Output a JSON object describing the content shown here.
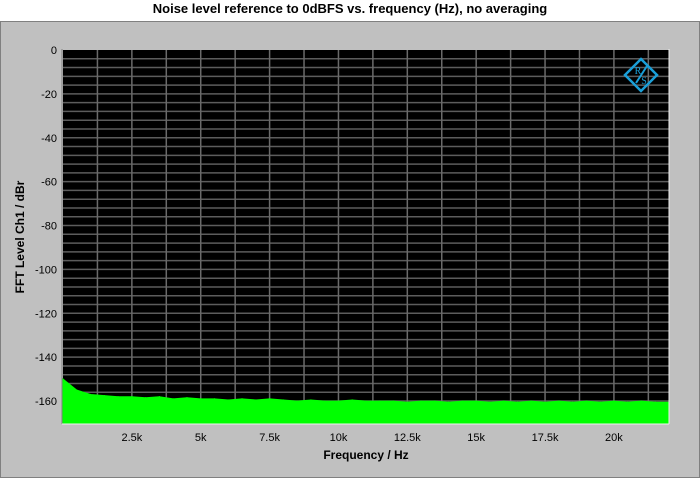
{
  "chart_data": {
    "type": "area",
    "title": "Noise level reference to 0dBFS vs. frequency (Hz), no averaging",
    "xlabel": "Frequency / Hz",
    "ylabel": "FFT Level Ch1 / dBr",
    "xlim": [
      0,
      22000
    ],
    "ylim": [
      -170,
      0
    ],
    "grid": true,
    "x_ticks": [
      2500,
      5000,
      7500,
      10000,
      12500,
      15000,
      17500,
      20000
    ],
    "x_tick_labels": [
      "2.5k",
      "5k",
      "7.5k",
      "10k",
      "12.5k",
      "15k",
      "17.5k",
      "20k"
    ],
    "y_ticks": [
      0,
      -20,
      -40,
      -60,
      -80,
      -100,
      -120,
      -140,
      -160
    ],
    "y_tick_labels": [
      "0",
      "-20",
      "-40",
      "-60",
      "-80",
      "-100",
      "-120",
      "-140",
      "-160"
    ],
    "series": [
      {
        "color": "#00ff00",
        "x": [
          0,
          500,
          1000,
          1500,
          2000,
          2500,
          3000,
          3500,
          4000,
          4500,
          5000,
          5500,
          6000,
          6500,
          7000,
          7500,
          8000,
          8500,
          9000,
          9500,
          10000,
          10500,
          11000,
          11500,
          12000,
          12500,
          13000,
          13500,
          14000,
          14500,
          15000,
          15500,
          16000,
          16500,
          17000,
          17500,
          18000,
          18500,
          19000,
          19500,
          20000,
          20500,
          21000,
          21500,
          22000
        ],
        "values": [
          -150,
          -155,
          -157,
          -157.5,
          -158,
          -158,
          -158.5,
          -158,
          -159,
          -158.5,
          -159,
          -159,
          -159.5,
          -159,
          -159.5,
          -159,
          -159.5,
          -160,
          -159.5,
          -160,
          -160,
          -159.5,
          -160,
          -160,
          -160,
          -160.5,
          -160,
          -160,
          -160.5,
          -160,
          -160,
          -160.5,
          -160,
          -160.5,
          -160,
          -160.5,
          -160,
          -160.5,
          -160,
          -160.5,
          -160,
          -160.5,
          -160,
          -160.5,
          -160.5
        ]
      }
    ],
    "logo": "Rohde & Schwarz",
    "logo_color": "#1a9fd8"
  }
}
